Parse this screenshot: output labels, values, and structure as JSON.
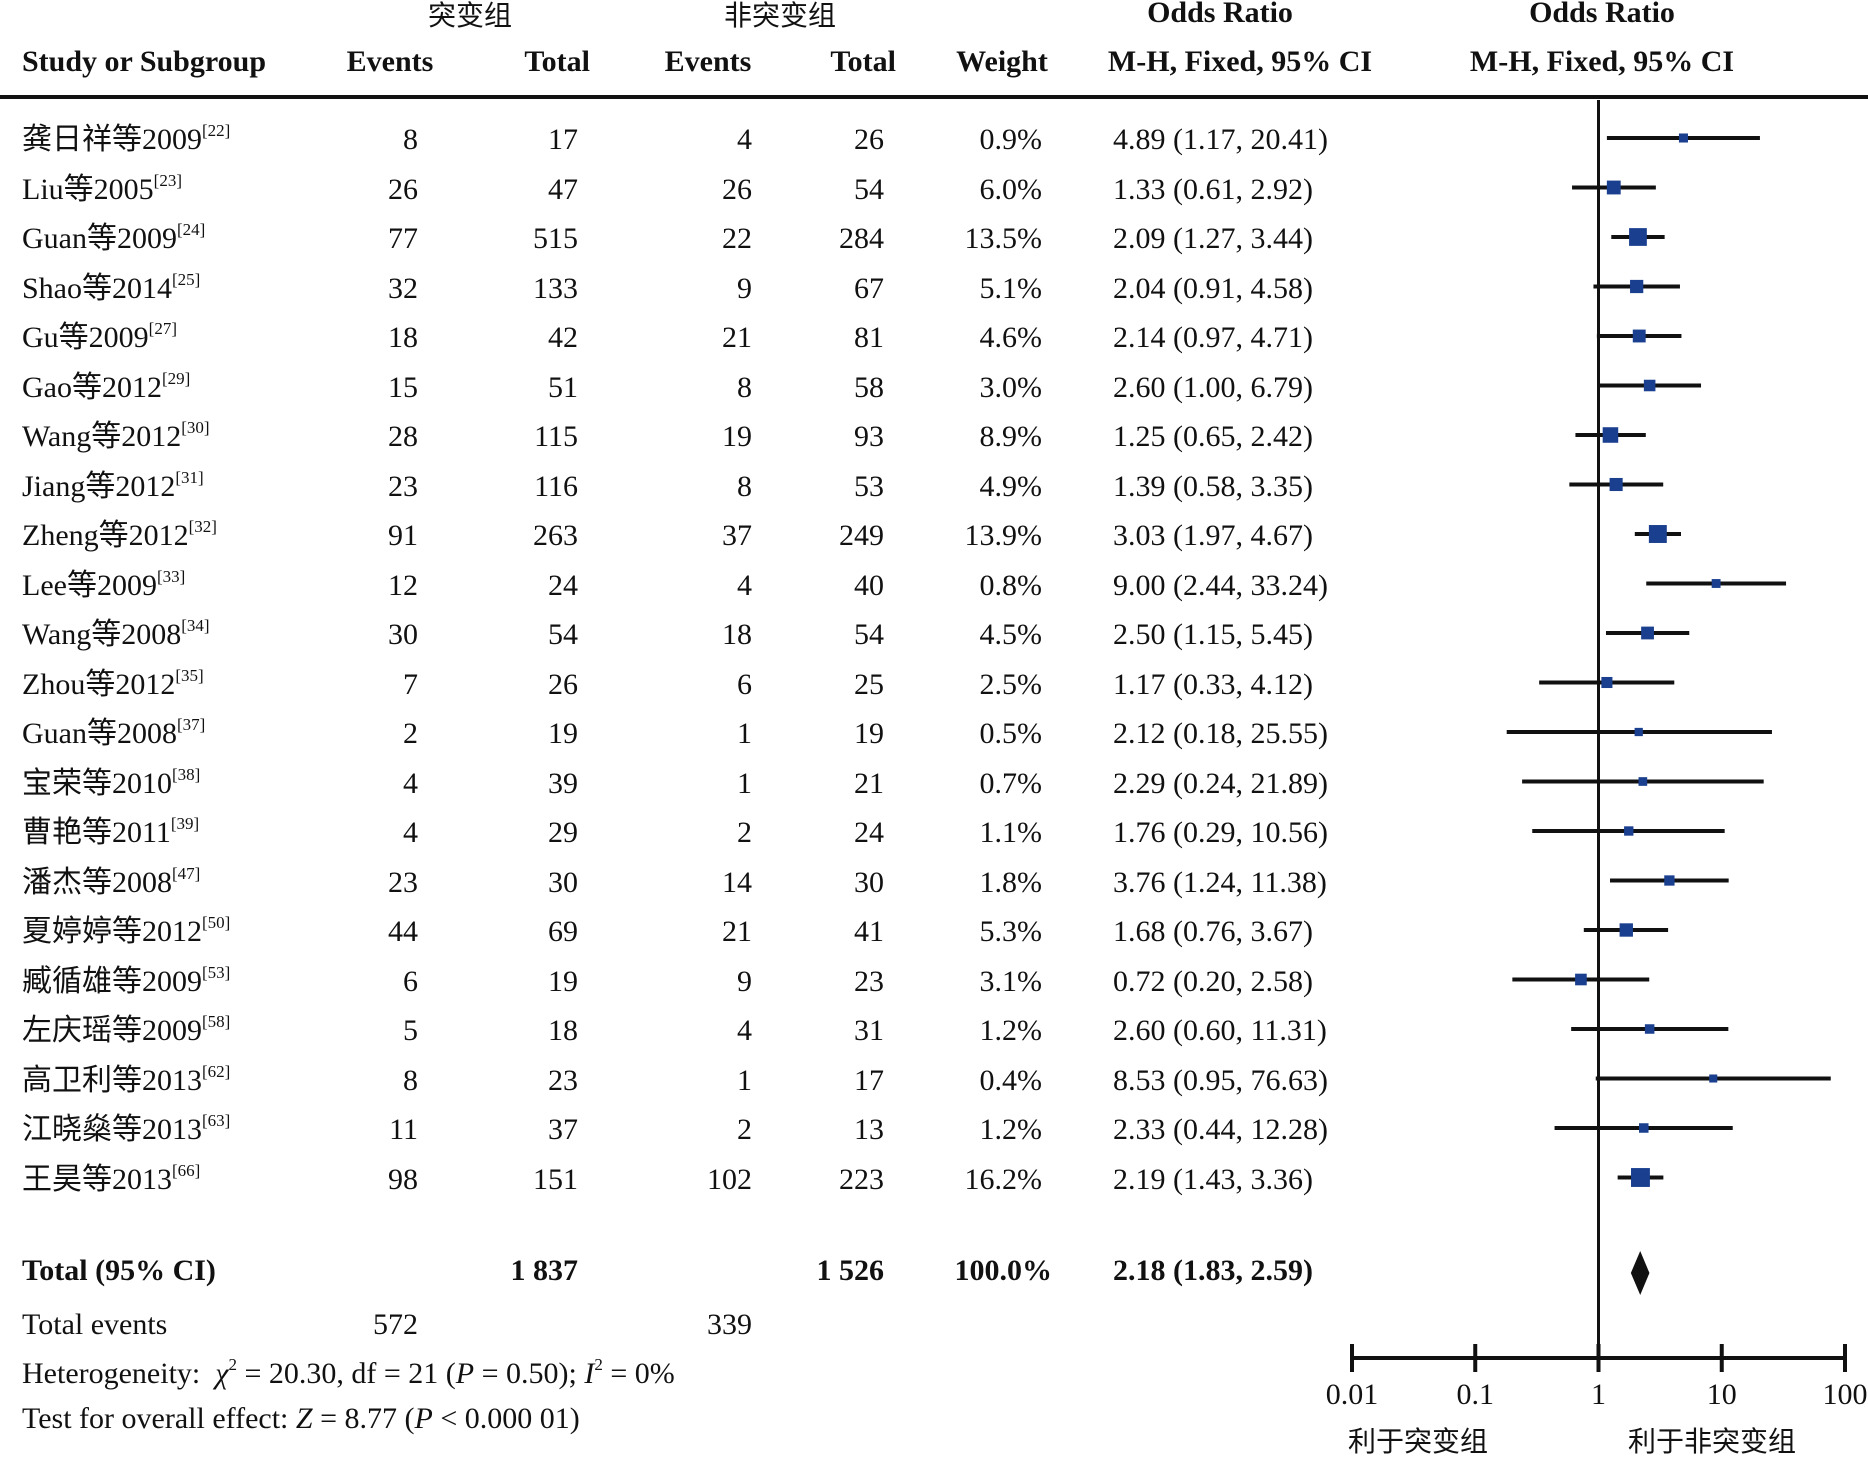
{
  "header": {
    "group1_label": "突变组",
    "group2_label": "非突变组",
    "study_col": "Study or Subgroup",
    "events_label": "Events",
    "total_label": "Total",
    "weight_label": "Weight",
    "or_title_1": "Odds Ratio",
    "or_method_1": "M-H, Fixed, 95% CI",
    "or_title_2": "Odds Ratio",
    "or_method_2": "M-H, Fixed, 95% CI"
  },
  "studies": [
    {
      "name": "龚日祥等2009",
      "ref": "[22]",
      "e1": "8",
      "t1": "17",
      "e2": "4",
      "t2": "26",
      "weight": "0.9%",
      "ci": "4.89 (1.17, 20.41)"
    },
    {
      "name": "Liu等2005",
      "ref": "[23]",
      "e1": "26",
      "t1": "47",
      "e2": "26",
      "t2": "54",
      "weight": "6.0%",
      "ci": "1.33 (0.61, 2.92)"
    },
    {
      "name": "Guan等2009",
      "ref": "[24]",
      "e1": "77",
      "t1": "515",
      "e2": "22",
      "t2": "284",
      "weight": "13.5%",
      "ci": "2.09 (1.27, 3.44)"
    },
    {
      "name": "Shao等2014",
      "ref": "[25]",
      "e1": "32",
      "t1": "133",
      "e2": "9",
      "t2": "67",
      "weight": "5.1%",
      "ci": "2.04 (0.91, 4.58)"
    },
    {
      "name": "Gu等2009",
      "ref": "[27]",
      "e1": "18",
      "t1": "42",
      "e2": "21",
      "t2": "81",
      "weight": "4.6%",
      "ci": "2.14 (0.97, 4.71)"
    },
    {
      "name": "Gao等2012",
      "ref": "[29]",
      "e1": "15",
      "t1": "51",
      "e2": "8",
      "t2": "58",
      "weight": "3.0%",
      "ci": "2.60 (1.00, 6.79)"
    },
    {
      "name": "Wang等2012",
      "ref": "[30]",
      "e1": "28",
      "t1": "115",
      "e2": "19",
      "t2": "93",
      "weight": "8.9%",
      "ci": "1.25 (0.65, 2.42)"
    },
    {
      "name": "Jiang等2012",
      "ref": "[31]",
      "e1": "23",
      "t1": "116",
      "e2": "8",
      "t2": "53",
      "weight": "4.9%",
      "ci": "1.39 (0.58, 3.35)"
    },
    {
      "name": "Zheng等2012",
      "ref": "[32]",
      "e1": "91",
      "t1": "263",
      "e2": "37",
      "t2": "249",
      "weight": "13.9%",
      "ci": "3.03 (1.97, 4.67)"
    },
    {
      "name": "Lee等2009",
      "ref": "[33]",
      "e1": "12",
      "t1": "24",
      "e2": "4",
      "t2": "40",
      "weight": "0.8%",
      "ci": "9.00 (2.44, 33.24)"
    },
    {
      "name": "Wang等2008",
      "ref": "[34]",
      "e1": "30",
      "t1": "54",
      "e2": "18",
      "t2": "54",
      "weight": "4.5%",
      "ci": "2.50 (1.15, 5.45)"
    },
    {
      "name": "Zhou等2012",
      "ref": "[35]",
      "e1": "7",
      "t1": "26",
      "e2": "6",
      "t2": "25",
      "weight": "2.5%",
      "ci": "1.17 (0.33, 4.12)"
    },
    {
      "name": "Guan等2008",
      "ref": "[37]",
      "e1": "2",
      "t1": "19",
      "e2": "1",
      "t2": "19",
      "weight": "0.5%",
      "ci": "2.12 (0.18, 25.55)"
    },
    {
      "name": "宝荣等2010",
      "ref": "[38]",
      "e1": "4",
      "t1": "39",
      "e2": "1",
      "t2": "21",
      "weight": "0.7%",
      "ci": "2.29 (0.24, 21.89)"
    },
    {
      "name": "曹艳等2011",
      "ref": "[39]",
      "e1": "4",
      "t1": "29",
      "e2": "2",
      "t2": "24",
      "weight": "1.1%",
      "ci": "1.76 (0.29, 10.56)"
    },
    {
      "name": "潘杰等2008",
      "ref": "[47]",
      "e1": "23",
      "t1": "30",
      "e2": "14",
      "t2": "30",
      "weight": "1.8%",
      "ci": "3.76 (1.24, 11.38)"
    },
    {
      "name": "夏婷婷等2012",
      "ref": "[50]",
      "e1": "44",
      "t1": "69",
      "e2": "21",
      "t2": "41",
      "weight": "5.3%",
      "ci": "1.68 (0.76, 3.67)"
    },
    {
      "name": "臧循雄等2009",
      "ref": "[53]",
      "e1": "6",
      "t1": "19",
      "e2": "9",
      "t2": "23",
      "weight": "3.1%",
      "ci": "0.72 (0.20, 2.58)"
    },
    {
      "name": "左庆瑶等2009",
      "ref": "[58]",
      "e1": "5",
      "t1": "18",
      "e2": "4",
      "t2": "31",
      "weight": "1.2%",
      "ci": "2.60 (0.60, 11.31)"
    },
    {
      "name": "高卫利等2013",
      "ref": "[62]",
      "e1": "8",
      "t1": "23",
      "e2": "1",
      "t2": "17",
      "weight": "0.4%",
      "ci": "8.53 (0.95, 76.63)"
    },
    {
      "name": "江晓燊等2013",
      "ref": "[63]",
      "e1": "11",
      "t1": "37",
      "e2": "2",
      "t2": "13",
      "weight": "1.2%",
      "ci": "2.33 (0.44, 12.28)"
    },
    {
      "name": "王昊等2013",
      "ref": "[66]",
      "e1": "98",
      "t1": "151",
      "e2": "102",
      "t2": "223",
      "weight": "16.2%",
      "ci": "2.19 (1.43, 3.36)"
    }
  ],
  "total": {
    "label": "Total (95% CI)",
    "t1": "1 837",
    "t2": "1 526",
    "weight": "100.0%",
    "ci": "2.18 (1.83, 2.59)"
  },
  "total_events": {
    "label": "Total events",
    "e1": "572",
    "e2": "339"
  },
  "heterogeneity": {
    "label": "Heterogeneity:",
    "chi": "χ",
    "chi_sup": "2",
    "chi_val": " = 20.30, df = 21 (",
    "p": "P",
    "p_val": " = 0.50); ",
    "i": "I",
    "i_sup": "2",
    "i_val": " = 0%"
  },
  "overall_effect": {
    "label": "Test for overall effect: ",
    "z": "Z",
    "z_val": " = 8.77 (",
    "p": "P",
    "p_val": " < 0.000 01)"
  },
  "axis": {
    "ticks": [
      "0.01",
      "0.1",
      "1",
      "10",
      "100"
    ],
    "favours_left": "利于突变组",
    "favours_right": "利于非突变组"
  },
  "colors": {
    "marker": "#1a3f8f",
    "ink": "#111111"
  },
  "chart_data": {
    "type": "forest",
    "scale": "log",
    "xlim": [
      0.01,
      100
    ],
    "null_line": 1,
    "studies": [
      {
        "or": 4.89,
        "lo": 1.17,
        "hi": 20.41,
        "w": 0.9
      },
      {
        "or": 1.33,
        "lo": 0.61,
        "hi": 2.92,
        "w": 6.0
      },
      {
        "or": 2.09,
        "lo": 1.27,
        "hi": 3.44,
        "w": 13.5
      },
      {
        "or": 2.04,
        "lo": 0.91,
        "hi": 4.58,
        "w": 5.1
      },
      {
        "or": 2.14,
        "lo": 0.97,
        "hi": 4.71,
        "w": 4.6
      },
      {
        "or": 2.6,
        "lo": 1.0,
        "hi": 6.79,
        "w": 3.0
      },
      {
        "or": 1.25,
        "lo": 0.65,
        "hi": 2.42,
        "w": 8.9
      },
      {
        "or": 1.39,
        "lo": 0.58,
        "hi": 3.35,
        "w": 4.9
      },
      {
        "or": 3.03,
        "lo": 1.97,
        "hi": 4.67,
        "w": 13.9
      },
      {
        "or": 9.0,
        "lo": 2.44,
        "hi": 33.24,
        "w": 0.8
      },
      {
        "or": 2.5,
        "lo": 1.15,
        "hi": 5.45,
        "w": 4.5
      },
      {
        "or": 1.17,
        "lo": 0.33,
        "hi": 4.12,
        "w": 2.5
      },
      {
        "or": 2.12,
        "lo": 0.18,
        "hi": 25.55,
        "w": 0.5
      },
      {
        "or": 2.29,
        "lo": 0.24,
        "hi": 21.89,
        "w": 0.7
      },
      {
        "or": 1.76,
        "lo": 0.29,
        "hi": 10.56,
        "w": 1.1
      },
      {
        "or": 3.76,
        "lo": 1.24,
        "hi": 11.38,
        "w": 1.8
      },
      {
        "or": 1.68,
        "lo": 0.76,
        "hi": 3.67,
        "w": 5.3
      },
      {
        "or": 0.72,
        "lo": 0.2,
        "hi": 2.58,
        "w": 3.1
      },
      {
        "or": 2.6,
        "lo": 0.6,
        "hi": 11.31,
        "w": 1.2
      },
      {
        "or": 8.53,
        "lo": 0.95,
        "hi": 76.63,
        "w": 0.4
      },
      {
        "or": 2.33,
        "lo": 0.44,
        "hi": 12.28,
        "w": 1.2
      },
      {
        "or": 2.19,
        "lo": 1.43,
        "hi": 3.36,
        "w": 16.2
      }
    ],
    "pooled": {
      "or": 2.18,
      "lo": 1.83,
      "hi": 2.59
    }
  }
}
